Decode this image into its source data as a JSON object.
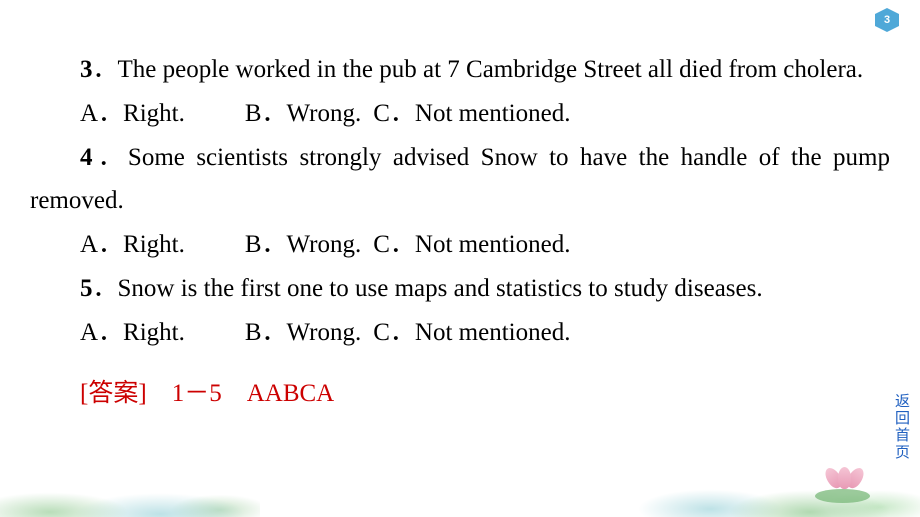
{
  "page_number": "3",
  "nav_link": "返回首页",
  "colors": {
    "text": "#000000",
    "answer": "#cc0000",
    "nav": "#2060c0",
    "badge": "#4fa8d8"
  },
  "questions": [
    {
      "number": "3",
      "text": "The people worked in the pub at 7 Cambridge Street all died from cholera.",
      "options": {
        "a": "A．Right.",
        "b": "B．Wrong.",
        "c": "C．Not mentioned."
      }
    },
    {
      "number": "4",
      "text": "Some scientists strongly advised Snow to have the handle of the pump removed.",
      "options": {
        "a": "A．Right.",
        "b": "B．Wrong.",
        "c": "C．Not mentioned."
      }
    },
    {
      "number": "5",
      "text": "Snow is the first one to use maps and statistics to study diseases.",
      "options": {
        "a": "A．Right.",
        "b": "B．Wrong.",
        "c": "C．Not mentioned."
      }
    }
  ],
  "answer": {
    "label_open": "[",
    "label_text": "答案",
    "label_close": "]",
    "range": "1－5",
    "result": "AABCA"
  }
}
